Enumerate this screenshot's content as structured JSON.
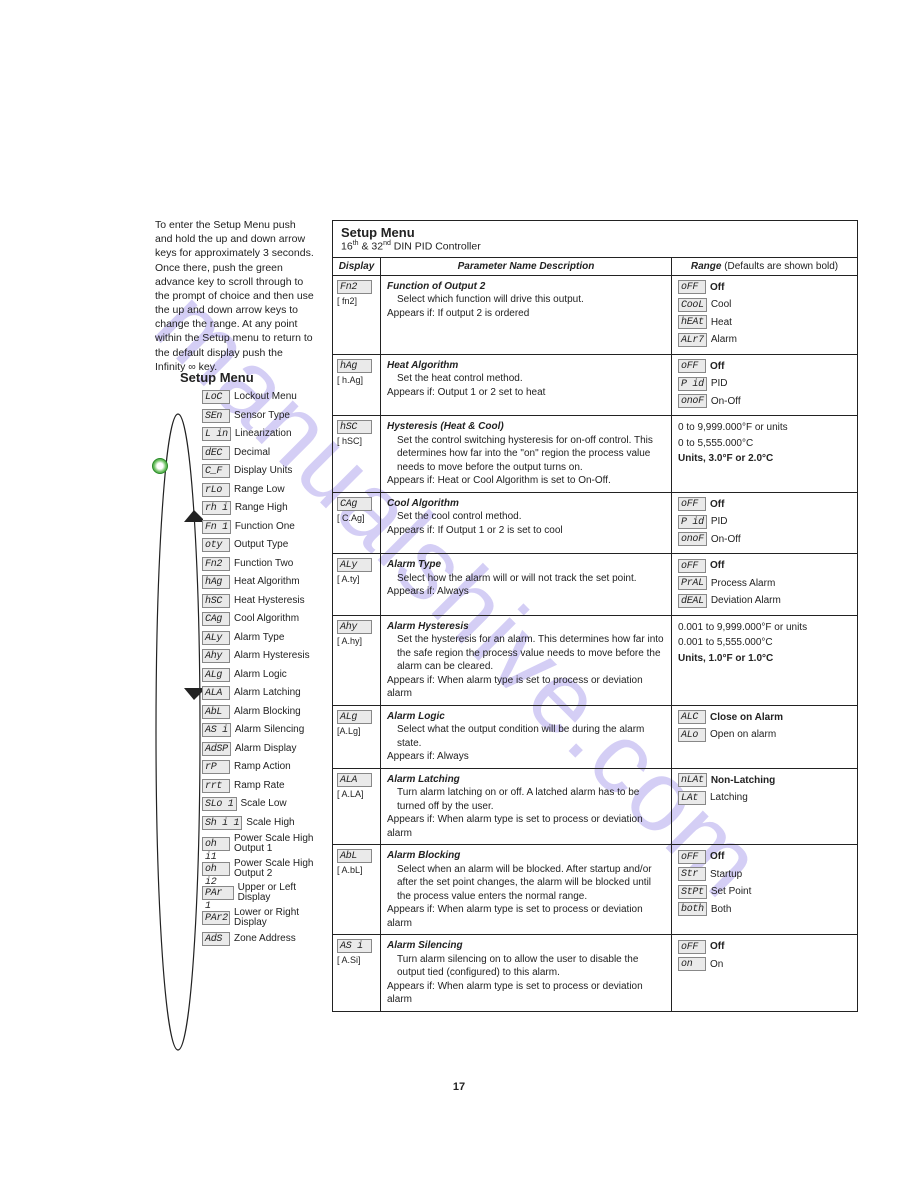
{
  "intro_text": "To enter the Setup Menu push and hold the up and down arrow keys for approximately 3 seconds. Once there, push the green advance key to scroll through to the prompt of choice and then use the up and down arrow keys to change the range. At any point within the Setup menu to return to the default display push the Infinity ∞ key.",
  "setup_heading": "Setup Menu",
  "menu_items": [
    {
      "seg": "LoC",
      "label": "Lockout Menu"
    },
    {
      "seg": "SEn",
      "label": "Sensor Type"
    },
    {
      "seg": "L in",
      "label": "Linearization"
    },
    {
      "seg": "dEC",
      "label": "Decimal"
    },
    {
      "seg": "C_F",
      "label": "Display Units"
    },
    {
      "seg": "rLo",
      "label": "Range Low"
    },
    {
      "seg": "rh i",
      "label": "Range High"
    },
    {
      "seg": "Fn 1",
      "label": "Function One"
    },
    {
      "seg": "oty",
      "label": "Output Type"
    },
    {
      "seg": "Fn2",
      "label": "Function Two"
    },
    {
      "seg": "hAg",
      "label": "Heat Algorithm"
    },
    {
      "seg": "hSC",
      "label": "Heat Hysteresis"
    },
    {
      "seg": "CAg",
      "label": "Cool Algorithm"
    },
    {
      "seg": "ALy",
      "label": "Alarm Type"
    },
    {
      "seg": "Ahy",
      "label": "Alarm Hysteresis"
    },
    {
      "seg": "ALg",
      "label": "Alarm Logic"
    },
    {
      "seg": "ALA",
      "label": "Alarm Latching"
    },
    {
      "seg": "AbL",
      "label": "Alarm Blocking"
    },
    {
      "seg": "AS i",
      "label": "Alarm Silencing"
    },
    {
      "seg": "AdSP",
      "label": "Alarm Display"
    },
    {
      "seg": " rP",
      "label": "Ramp Action"
    },
    {
      "seg": " rrt",
      "label": "Ramp Rate"
    },
    {
      "seg": "SLo 1",
      "label": "Scale Low"
    },
    {
      "seg": "Sh i 1",
      "label": "Scale High"
    },
    {
      "seg": "oh i1",
      "label": "Power Scale High Output 1"
    },
    {
      "seg": "oh i2",
      "label": "Power Scale High Output 2"
    },
    {
      "seg": "PAr 1",
      "label": "Upper or Left Display"
    },
    {
      "seg": "PAr2",
      "label": "Lower or Right Display"
    },
    {
      "seg": "AdS",
      "label": "Zone Address"
    }
  ],
  "table": {
    "title": "Setup Menu",
    "subtitle_prefix": "16",
    "subtitle_mid": " & 32",
    "subtitle_suffix": " DIN PID Controller",
    "th1": "Display",
    "th2": "Parameter Name Description",
    "th3_prefix": "Range ",
    "th3_suffix": "(Defaults are shown bold)",
    "rows": [
      {
        "seg": "Fn2",
        "sub": "[ fn2]",
        "name": "Function of Output 2",
        "desc": "Select which function will drive this output.",
        "appears": "Appears if: If output 2 is ordered",
        "ranges": [
          {
            "seg": "oFF",
            "txt": "Off",
            "bold": true
          },
          {
            "seg": "CooL",
            "txt": "Cool"
          },
          {
            "seg": "hEAt",
            "txt": "Heat"
          },
          {
            "seg": "ALr7",
            "txt": "Alarm"
          }
        ]
      },
      {
        "seg": "hAg",
        "sub": "[ h.Ag]",
        "name": "Heat Algorithm",
        "desc": "Set the heat control method.",
        "appears": "Appears if: Output 1 or 2 set to heat",
        "ranges": [
          {
            "seg": "oFF",
            "txt": "Off",
            "bold": true
          },
          {
            "seg": "P id",
            "txt": "PID"
          },
          {
            "seg": "onoF",
            "txt": "On-Off"
          }
        ]
      },
      {
        "seg": "hSC",
        "sub": "[ hSC]",
        "name": "Hysteresis (Heat & Cool)",
        "desc": "Set the control switching hysteresis for on-off control. This determines how far into the \"on\" region the process value needs to move before the output turns on.",
        "appears": "Appears if: Heat or Cool Algorithm is set to On-Off.",
        "range_text": [
          {
            "txt": "0 to 9,999.000°F or units"
          },
          {
            "txt": "0 to 5,555.000°C"
          },
          {
            "txt": "Units, 3.0°F or 2.0°C",
            "bold": true
          }
        ]
      },
      {
        "seg": "CAg",
        "sub": "[ C.Ag]",
        "name": "Cool Algorithm",
        "desc": "Set the cool control method.",
        "appears": "Appears if: If Output 1 or 2 is set to cool",
        "ranges": [
          {
            "seg": "oFF",
            "txt": "Off",
            "bold": true
          },
          {
            "seg": "P id",
            "txt": "PID"
          },
          {
            "seg": "onoF",
            "txt": "On-Off"
          }
        ]
      },
      {
        "seg": "ALy",
        "sub": "[ A.ty]",
        "name": "Alarm Type",
        "desc": "Select how the alarm will or will not track the set point.",
        "appears": "Appears if: Always",
        "ranges": [
          {
            "seg": "oFF",
            "txt": "Off",
            "bold": true
          },
          {
            "seg": "PrAL",
            "txt": "Process Alarm"
          },
          {
            "seg": "dEAL",
            "txt": "Deviation Alarm"
          }
        ]
      },
      {
        "seg": "Ahy",
        "sub": "[ A.hy]",
        "name": "Alarm Hysteresis",
        "desc": "Set the hysteresis for an alarm. This determines how far into the safe region the process value needs to move before the alarm can be cleared.",
        "appears": "Appears if: When alarm type is set to process or deviation alarm",
        "range_text": [
          {
            "txt": "0.001 to 9,999.000°F or units"
          },
          {
            "txt": "0.001 to 5,555.000°C"
          },
          {
            "txt": "Units, 1.0°F or 1.0°C",
            "bold": true
          }
        ]
      },
      {
        "seg": "ALg",
        "sub": "[A.Lg]",
        "name": "Alarm Logic",
        "desc": "Select what the output condition will be during the alarm state.",
        "appears": "Appears if: Always",
        "ranges": [
          {
            "seg": "ALC",
            "txt": "Close on Alarm",
            "bold": true
          },
          {
            "seg": "ALo",
            "txt": "Open on alarm"
          }
        ]
      },
      {
        "seg": "ALA",
        "sub": "[ A.LA]",
        "name": "Alarm Latching",
        "desc": "Turn alarm latching on or off. A latched alarm has to be turned off by the user.",
        "appears": "Appears if: When alarm type is set to process or deviation alarm",
        "ranges": [
          {
            "seg": "nLAt",
            "txt": "Non-Latching",
            "bold": true
          },
          {
            "seg": "LAt",
            "txt": "Latching"
          }
        ]
      },
      {
        "seg": "AbL",
        "sub": "[ A.bL]",
        "name": "Alarm Blocking",
        "desc": "Select when an alarm will be blocked. After startup and/or after the set point changes, the alarm will be blocked until the process value enters the normal range.",
        "appears": "Appears if: When alarm type is set to process or deviation alarm",
        "ranges": [
          {
            "seg": "oFF",
            "txt": "Off",
            "bold": true
          },
          {
            "seg": "Str",
            "txt": "Startup"
          },
          {
            "seg": "StPt",
            "txt": "Set Point"
          },
          {
            "seg": "both",
            "txt": "Both"
          }
        ]
      },
      {
        "seg": "AS i",
        "sub": "[ A.Si]",
        "name": "Alarm Silencing",
        "desc": "Turn alarm silencing on to allow the user to disable the output tied (configured) to this alarm.",
        "appears": "Appears if: When alarm type is set to process or deviation alarm",
        "ranges": [
          {
            "seg": "oFF",
            "txt": "Off",
            "bold": true
          },
          {
            "seg": " on",
            "txt": "On"
          }
        ]
      }
    ]
  },
  "watermark": "manualshive.com",
  "page_num": "17"
}
